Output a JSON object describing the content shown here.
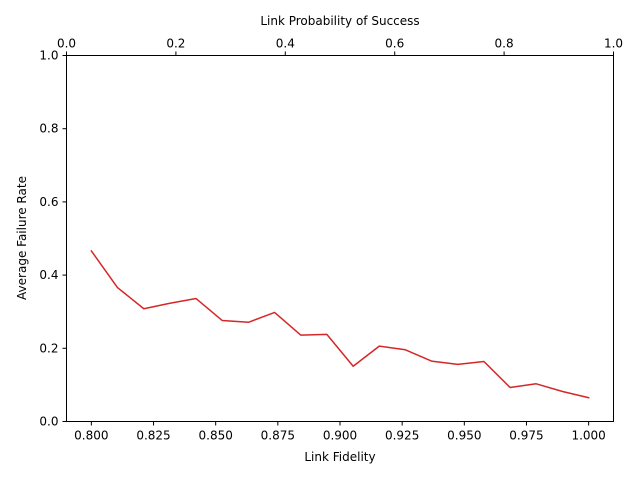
{
  "chart_data": {
    "type": "line",
    "xlabel": "Link Fidelity",
    "ylabel": "Average Failure Rate",
    "top_xlabel": "Link Probability of Success",
    "xlim": [
      0.79,
      1.01
    ],
    "ylim": [
      0.0,
      1.0
    ],
    "top_xlim": [
      0.0,
      1.0
    ],
    "xticks": [
      0.8,
      0.825,
      0.85,
      0.875,
      0.9,
      0.925,
      0.95,
      0.975,
      1.0
    ],
    "xtick_labels": [
      "0.800",
      "0.825",
      "0.850",
      "0.875",
      "0.900",
      "0.925",
      "0.950",
      "0.975",
      "1.000"
    ],
    "yticks": [
      0.0,
      0.2,
      0.4,
      0.6,
      0.8,
      1.0
    ],
    "ytick_labels": [
      "0.0",
      "0.2",
      "0.4",
      "0.6",
      "0.8",
      "1.0"
    ],
    "top_xticks": [
      0.0,
      0.2,
      0.4,
      0.6,
      0.8,
      1.0
    ],
    "top_xtick_labels": [
      "0.0",
      "0.2",
      "0.4",
      "0.6",
      "0.8",
      "1.0"
    ],
    "grid": false,
    "series": [
      {
        "color": "#d62728",
        "x": [
          0.8,
          0.8105,
          0.8211,
          0.8316,
          0.8421,
          0.8526,
          0.8632,
          0.8737,
          0.8842,
          0.8947,
          0.9053,
          0.9158,
          0.9263,
          0.9368,
          0.9474,
          0.9579,
          0.9684,
          0.9789,
          0.9895,
          1.0
        ],
        "y": [
          0.466,
          0.366,
          0.308,
          0.323,
          0.336,
          0.276,
          0.271,
          0.298,
          0.236,
          0.238,
          0.151,
          0.206,
          0.196,
          0.165,
          0.156,
          0.164,
          0.093,
          0.103,
          0.082,
          0.065
        ]
      }
    ]
  }
}
